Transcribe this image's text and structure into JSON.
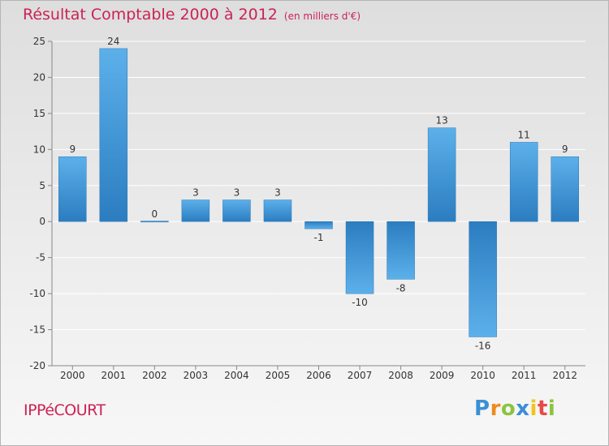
{
  "title": "Résultat Comptable 2000 à 2012",
  "subtitle": "(en milliers d'€)",
  "commune": "IPPéCOURT",
  "logo": {
    "letters": [
      "P",
      "r",
      "o",
      "x",
      "i",
      "t",
      "i"
    ],
    "colors": [
      "#3a8fd6",
      "#f08a1c",
      "#8bc43f",
      "#3a8fd6",
      "#f0c41c",
      "#e84a4a",
      "#8bc43f"
    ]
  },
  "colors": {
    "title": "#cc2255",
    "bar_light": "#5aaee8",
    "bar_dark": "#2c7fc2"
  },
  "chart_data": {
    "type": "bar",
    "title": "Résultat Comptable 2000 à 2012",
    "xlabel": "",
    "ylabel": "",
    "categories": [
      "2000",
      "2001",
      "2002",
      "2003",
      "2004",
      "2005",
      "2006",
      "2007",
      "2008",
      "2009",
      "2010",
      "2011",
      "2012"
    ],
    "values": [
      9,
      24,
      0,
      3,
      3,
      3,
      -1,
      -10,
      -8,
      13,
      -16,
      11,
      9
    ],
    "labels": [
      "9",
      "24",
      "0",
      "3",
      "3",
      "3",
      "-1",
      "-10",
      "-8",
      "13",
      "-16",
      "11",
      "9"
    ],
    "ylim": [
      -20,
      25
    ],
    "yticks": [
      25,
      20,
      15,
      10,
      5,
      0,
      -5,
      -10,
      -15,
      -20
    ],
    "grid": "horizontal"
  }
}
